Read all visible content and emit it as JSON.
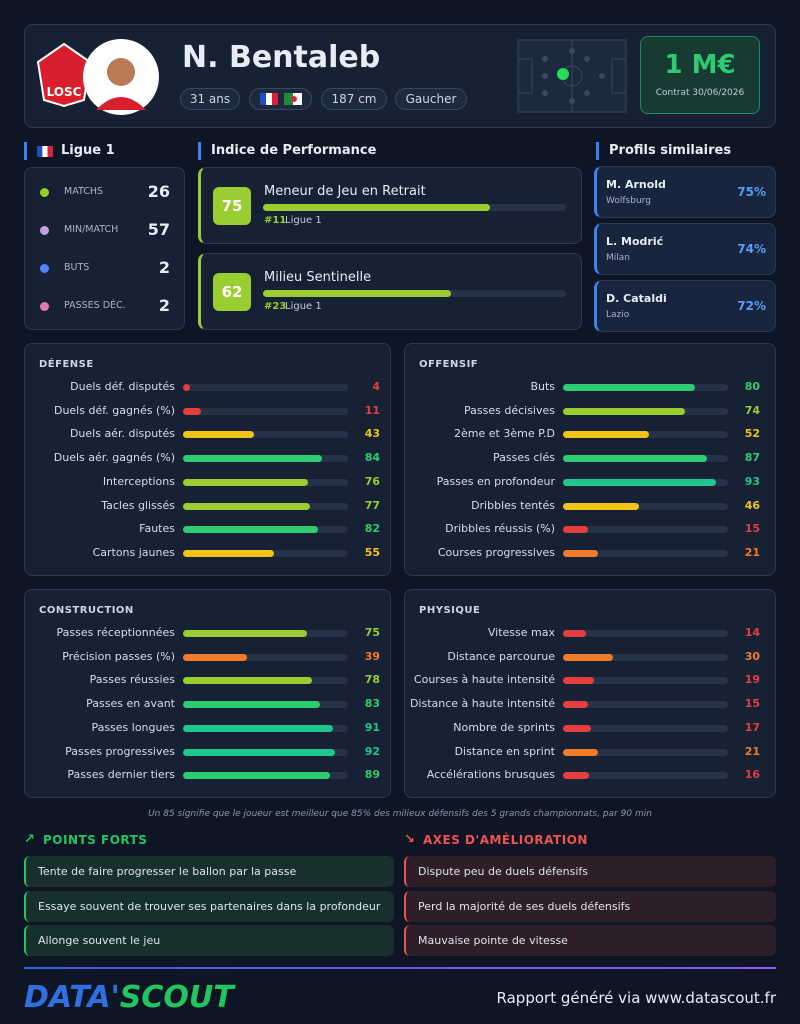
{
  "header": {
    "name": "N. Bentaleb",
    "badge": "LOSC",
    "age": "31 ans",
    "height": "187 cm",
    "foot": "Gaucher",
    "value": "1 M€",
    "contract": "Contrat 30/06/2026"
  },
  "league": {
    "name": "Ligue 1",
    "stats": [
      {
        "label": "MATCHS",
        "value": 26
      },
      {
        "label": "MIN/MATCH",
        "value": 57
      },
      {
        "label": "BUTS",
        "value": 2
      },
      {
        "label": "PASSES DÉC.",
        "value": 2
      }
    ]
  },
  "performance": {
    "title": "Indice de Performance",
    "items": [
      {
        "score": 75,
        "role": "Meneur de Jeu en Retrait",
        "rank": "#11",
        "league": "Ligue 1"
      },
      {
        "score": 62,
        "role": "Milieu Sentinelle",
        "rank": "#23",
        "league": "Ligue 1"
      }
    ]
  },
  "similar": {
    "title": "Profils similaires",
    "players": [
      {
        "name": "M. Arnold",
        "club": "Wolfsburg",
        "similarity": "75%"
      },
      {
        "name": "L. Modrić",
        "club": "Milan",
        "similarity": "74%"
      },
      {
        "name": "D. Cataldi",
        "club": "Lazio",
        "similarity": "72%"
      }
    ]
  },
  "sections": [
    {
      "title": "DÉFENSE",
      "metrics": [
        {
          "label": "Duels déf. disputés",
          "value": 4
        },
        {
          "label": "Duels déf. gagnés (%)",
          "value": 11
        },
        {
          "label": "Duels aér. disputés",
          "value": 43
        },
        {
          "label": "Duels aér. gagnés (%)",
          "value": 84
        },
        {
          "label": "Interceptions",
          "value": 76
        },
        {
          "label": "Tacles glissés",
          "value": 77
        },
        {
          "label": "Fautes",
          "value": 82
        },
        {
          "label": "Cartons jaunes",
          "value": 55
        }
      ]
    },
    {
      "title": "OFFENSIF",
      "metrics": [
        {
          "label": "Buts",
          "value": 80
        },
        {
          "label": "Passes décisives",
          "value": 74
        },
        {
          "label": "2ème et 3ème P.D",
          "value": 52
        },
        {
          "label": "Passes clés",
          "value": 87
        },
        {
          "label": "Passes en profondeur",
          "value": 93
        },
        {
          "label": "Dribbles tentés",
          "value": 46
        },
        {
          "label": "Dribbles réussis (%)",
          "value": 15
        },
        {
          "label": "Courses progressives",
          "value": 21
        }
      ]
    },
    {
      "title": "CONSTRUCTION",
      "metrics": [
        {
          "label": "Passes réceptionnées",
          "value": 75
        },
        {
          "label": "Précision passes (%)",
          "value": 39
        },
        {
          "label": "Passes réussies",
          "value": 78
        },
        {
          "label": "Passes en avant",
          "value": 83
        },
        {
          "label": "Passes longues",
          "value": 91
        },
        {
          "label": "Passes progressives",
          "value": 92
        },
        {
          "label": "Passes dernier tiers",
          "value": 89
        }
      ]
    },
    {
      "title": "PHYSIQUE",
      "metrics": [
        {
          "label": "Vitesse max",
          "value": 14
        },
        {
          "label": "Distance parcourue",
          "value": 30
        },
        {
          "label": "Courses à haute intensité",
          "value": 19
        },
        {
          "label": "Distance à haute intensité",
          "value": 15
        },
        {
          "label": "Nombre de sprints",
          "value": 17
        },
        {
          "label": "Distance en sprint",
          "value": 21
        },
        {
          "label": "Accélérations brusques",
          "value": 16
        }
      ]
    }
  ],
  "note": "Un 85 signifie que le joueur est meilleur que 85% des milieux défensifs des 5 grands championnats, par 90 min",
  "strengths": {
    "title": "POINTS FORTS",
    "items": [
      "Tente de faire progresser le ballon par la passe",
      "Essaye souvent de trouver ses partenaires dans la profondeur",
      "Allonge souvent le jeu"
    ]
  },
  "improvements": {
    "title": "AXES D'AMÉLIORATION",
    "items": [
      "Dispute peu de duels défensifs",
      "Perd la majorité de ses duels défensifs",
      "Mauvaise pointe de vitesse"
    ]
  },
  "footer": {
    "brand_a": "DATA'",
    "brand_b": "SCOUT",
    "credit": "Rapport généré via www.datascout.fr"
  }
}
